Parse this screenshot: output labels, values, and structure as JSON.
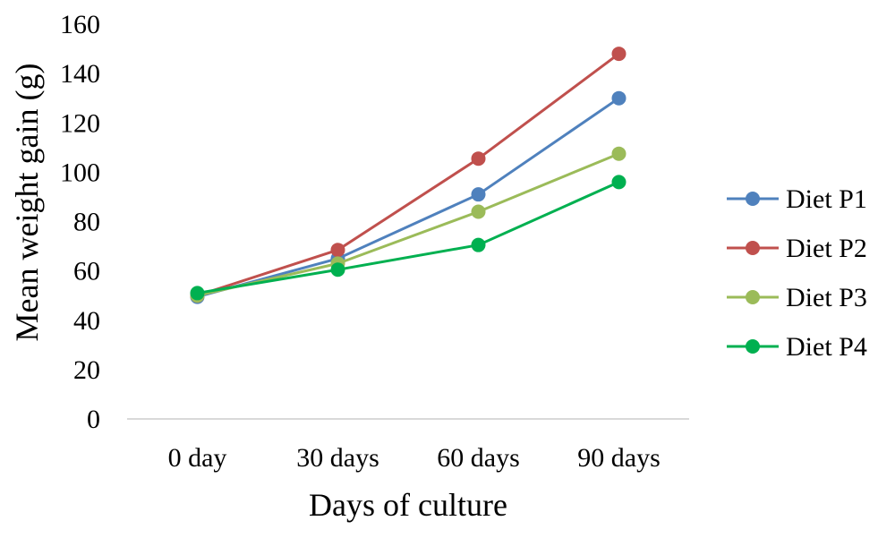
{
  "chart_data": {
    "type": "line",
    "categories": [
      "0 day",
      "30 days",
      "60 days",
      "90 days"
    ],
    "series": [
      {
        "name": "Diet P1",
        "color": "#4f81bd",
        "values": [
          49.5,
          65,
          91,
          130
        ]
      },
      {
        "name": "Diet P2",
        "color": "#c0504d",
        "values": [
          50,
          68.5,
          105.5,
          148
        ]
      },
      {
        "name": "Diet P3",
        "color": "#9bbb59",
        "values": [
          50,
          63,
          84,
          107.5
        ]
      },
      {
        "name": "Diet P4",
        "color": "#00b050",
        "values": [
          51,
          60.5,
          70.5,
          96
        ]
      }
    ],
    "title": "",
    "xlabel": "Days of culture",
    "ylabel": "Mean weight gain (g)",
    "ylim": [
      0,
      160
    ],
    "yticks": [
      0,
      20,
      40,
      60,
      80,
      100,
      120,
      140,
      160
    ],
    "grid": false,
    "legend_position": "right",
    "axis_color": "#d9d9d9"
  }
}
